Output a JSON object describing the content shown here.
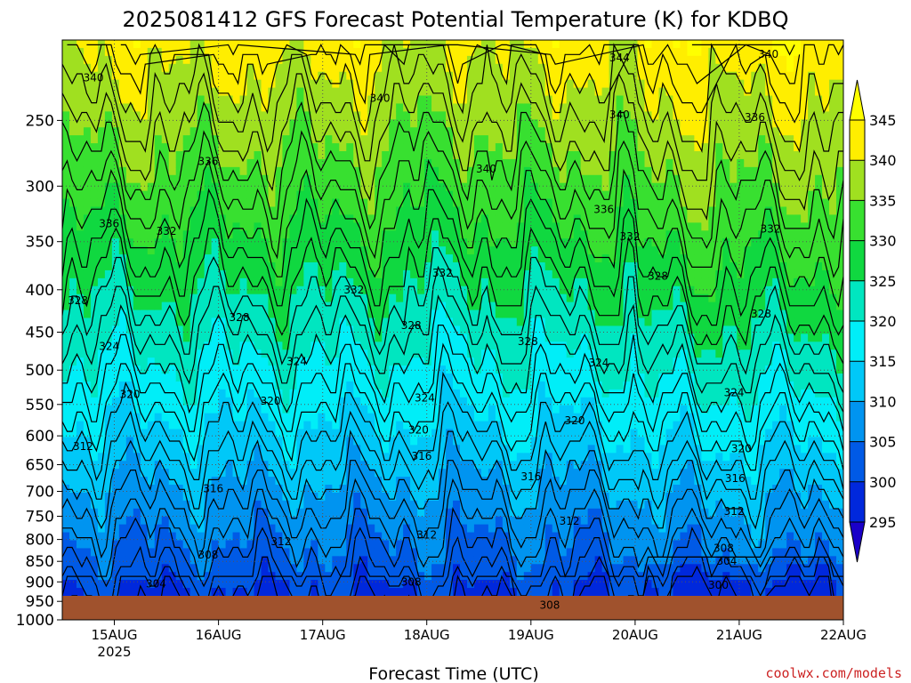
{
  "chart_data": {
    "type": "heatmap",
    "title": "2025081412 GFS Forecast Potential Temperature (K) for KDBQ",
    "xlabel": "Forecast Time (UTC)",
    "ylabel": "",
    "x_ticks": [
      {
        "label": "15AUG",
        "sub": "2025",
        "day": 15
      },
      {
        "label": "16AUG",
        "sub": "",
        "day": 16
      },
      {
        "label": "17AUG",
        "sub": "",
        "day": 17
      },
      {
        "label": "18AUG",
        "sub": "",
        "day": 18
      },
      {
        "label": "19AUG",
        "sub": "",
        "day": 19
      },
      {
        "label": "20AUG",
        "sub": "",
        "day": 20
      },
      {
        "label": "21AUG",
        "sub": "",
        "day": 21
      },
      {
        "label": "22AUG",
        "sub": "",
        "day": 22
      }
    ],
    "x_range_days": [
      14.5,
      22.0
    ],
    "y_ticks": [
      "250",
      "300",
      "350",
      "400",
      "450",
      "500",
      "550",
      "600",
      "650",
      "700",
      "750",
      "800",
      "850",
      "900",
      "950",
      "1000"
    ],
    "y_scale": "log",
    "y_range_hpa": [
      200,
      1000
    ],
    "grid": true,
    "colorbar": {
      "labels": [
        "295",
        "300",
        "305",
        "310",
        "315",
        "320",
        "325",
        "330",
        "335",
        "340",
        "345"
      ],
      "colors": [
        "#1a00c8",
        "#0028dc",
        "#005ae6",
        "#0094f0",
        "#00c8f8",
        "#00eef8",
        "#00e6c0",
        "#10d840",
        "#38e030",
        "#a0e020",
        "#ffee00",
        "#ffff00"
      ],
      "extend": "both"
    },
    "contour_labels": [
      {
        "text": "340",
        "day": 14.8,
        "p": 222
      },
      {
        "text": "336",
        "day": 14.95,
        "p": 333
      },
      {
        "text": "328",
        "day": 14.65,
        "p": 412
      },
      {
        "text": "324",
        "day": 14.95,
        "p": 468
      },
      {
        "text": "320",
        "day": 15.15,
        "p": 535
      },
      {
        "text": "312",
        "day": 14.7,
        "p": 618
      },
      {
        "text": "336",
        "day": 15.9,
        "p": 280
      },
      {
        "text": "332",
        "day": 15.5,
        "p": 340
      },
      {
        "text": "328",
        "day": 16.2,
        "p": 432
      },
      {
        "text": "320",
        "day": 16.5,
        "p": 545
      },
      {
        "text": "316",
        "day": 15.95,
        "p": 695
      },
      {
        "text": "308",
        "day": 15.9,
        "p": 835
      },
      {
        "text": "304",
        "day": 15.4,
        "p": 905
      },
      {
        "text": "324",
        "day": 16.75,
        "p": 488
      },
      {
        "text": "312",
        "day": 16.6,
        "p": 805
      },
      {
        "text": "332",
        "day": 17.3,
        "p": 400
      },
      {
        "text": "340",
        "day": 17.55,
        "p": 235
      },
      {
        "text": "328",
        "day": 17.85,
        "p": 442
      },
      {
        "text": "308",
        "day": 17.85,
        "p": 900
      },
      {
        "text": "316",
        "day": 17.95,
        "p": 635
      },
      {
        "text": "320",
        "day": 17.92,
        "p": 590
      },
      {
        "text": "324",
        "day": 17.98,
        "p": 540
      },
      {
        "text": "312",
        "day": 18.0,
        "p": 790
      },
      {
        "text": "332",
        "day": 18.15,
        "p": 382
      },
      {
        "text": "340",
        "day": 18.57,
        "p": 286
      },
      {
        "text": "328",
        "day": 18.97,
        "p": 462
      },
      {
        "text": "316",
        "day": 19.0,
        "p": 672
      },
      {
        "text": "308",
        "day": 19.18,
        "p": 960
      },
      {
        "text": "312",
        "day": 19.37,
        "p": 760
      },
      {
        "text": "336",
        "day": 19.7,
        "p": 320
      },
      {
        "text": "344",
        "day": 19.85,
        "p": 210
      },
      {
        "text": "340",
        "day": 19.85,
        "p": 246
      },
      {
        "text": "332",
        "day": 19.95,
        "p": 345
      },
      {
        "text": "324",
        "day": 19.65,
        "p": 490
      },
      {
        "text": "320",
        "day": 19.42,
        "p": 575
      },
      {
        "text": "328",
        "day": 20.22,
        "p": 385
      },
      {
        "text": "312",
        "day": 20.95,
        "p": 740
      },
      {
        "text": "316",
        "day": 20.96,
        "p": 675
      },
      {
        "text": "320",
        "day": 21.02,
        "p": 622
      },
      {
        "text": "324",
        "day": 20.95,
        "p": 532
      },
      {
        "text": "308",
        "day": 20.85,
        "p": 820
      },
      {
        "text": "304",
        "day": 20.88,
        "p": 850
      },
      {
        "text": "300",
        "day": 20.8,
        "p": 908
      },
      {
        "text": "328",
        "day": 21.21,
        "p": 428
      },
      {
        "text": "332",
        "day": 21.3,
        "p": 338
      },
      {
        "text": "336",
        "day": 21.15,
        "p": 248
      },
      {
        "text": "340",
        "day": 21.28,
        "p": 208
      }
    ]
  },
  "credit": "coolwx.com/models"
}
